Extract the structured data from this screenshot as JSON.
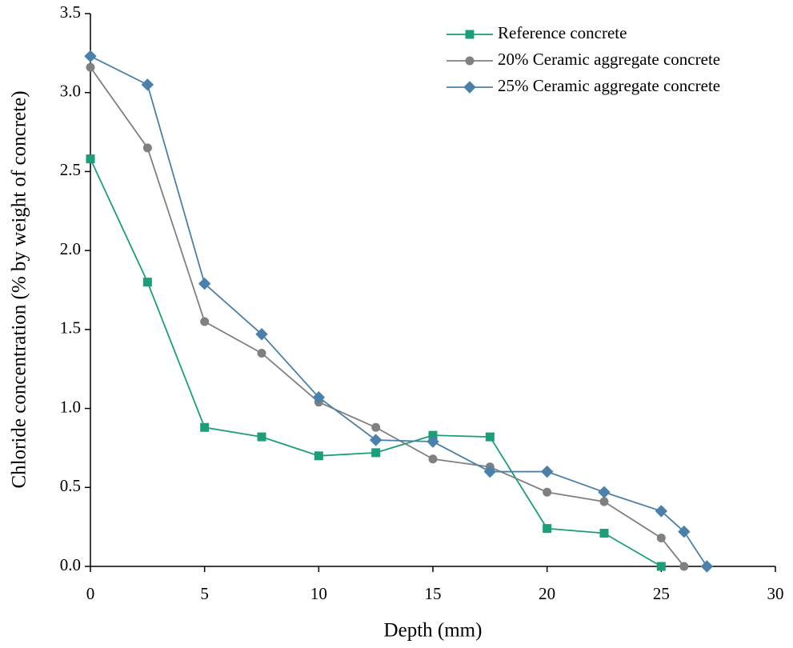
{
  "chart_data": {
    "type": "line",
    "x_label": "Depth (mm)",
    "y_label": "Chloride concentration (% by weight of concrete)",
    "xlim": [
      0,
      30
    ],
    "xticks": [
      0,
      5,
      10,
      15,
      20,
      25,
      30
    ],
    "ylim": [
      0,
      3.5
    ],
    "yticks": [
      {
        "value": 0,
        "label": "0.0"
      },
      0.5,
      {
        "value": 1,
        "label": "1.0"
      },
      1.5,
      {
        "value": 2,
        "label": "2.0"
      },
      2.5,
      {
        "value": 3,
        "label": "3.0"
      },
      3.5
    ],
    "grid": false,
    "legend": "upper-right",
    "series": [
      {
        "name": "Reference concrete",
        "color": "#1b9e7a",
        "marker": "square",
        "x": [
          0,
          2.5,
          5,
          7.5,
          10,
          12.5,
          15,
          17.5,
          20,
          22.5,
          25
        ],
        "values": [
          2.58,
          1.8,
          0.88,
          0.82,
          0.7,
          0.72,
          0.83,
          0.82,
          0.24,
          0.21,
          0
        ]
      },
      {
        "name": "20% Ceramic aggregate concrete",
        "color": "#808080",
        "marker": "circle",
        "x": [
          0,
          2.5,
          5,
          7.5,
          10,
          12.5,
          15,
          17.5,
          20,
          22.5,
          25,
          26
        ],
        "values": [
          3.16,
          2.65,
          1.55,
          1.35,
          1.04,
          0.88,
          0.68,
          0.63,
          0.47,
          0.41,
          0.18,
          0
        ]
      },
      {
        "name": "25% Ceramic aggregate concrete",
        "color": "#4a80a9",
        "marker": "diamond",
        "x": [
          0,
          2.5,
          5,
          7.5,
          10,
          12.5,
          15,
          17.5,
          20,
          22.5,
          25,
          26,
          27
        ],
        "values": [
          3.23,
          3.05,
          1.79,
          1.47,
          1.07,
          0.8,
          0.79,
          0.6,
          0.6,
          0.47,
          0.35,
          0.22,
          0
        ]
      }
    ]
  }
}
